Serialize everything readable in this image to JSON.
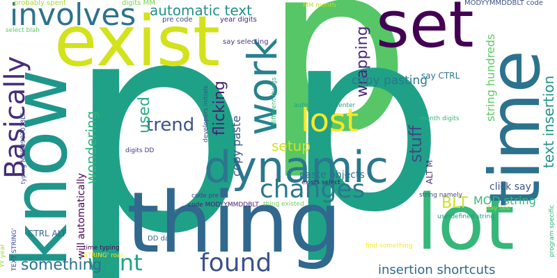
{
  "words": [
    {
      "text": "p",
      "color": "#1fa187"
    },
    {
      "text": "p",
      "color": "#56c667"
    },
    {
      "text": "p",
      "color": "#1fa187"
    },
    {
      "text": "thing",
      "color": "#31688e"
    },
    {
      "text": "know",
      "color": "#1f968b"
    },
    {
      "text": "exist",
      "color": "#d2e21b"
    },
    {
      "text": "lot",
      "color": "#35b779"
    },
    {
      "text": "time",
      "color": "#2c728e"
    },
    {
      "text": "set",
      "color": "#440154"
    },
    {
      "text": "dynamic",
      "color": "#2a788e"
    },
    {
      "text": "involves",
      "color": "#2c728e"
    },
    {
      "text": "Basically",
      "color": "#472d7b"
    },
    {
      "text": "work",
      "color": "#26828e"
    },
    {
      "text": "lost",
      "color": "#fde725"
    },
    {
      "text": "found",
      "color": "#3b528b"
    },
    {
      "text": "want",
      "color": "#20a386"
    },
    {
      "text": "changes",
      "color": "#2a788e"
    },
    {
      "text": "automatic text",
      "color": "#21918c"
    },
    {
      "text": "something",
      "color": "#2c728e"
    },
    {
      "text": "trend",
      "color": "#3b528b"
    },
    {
      "text": "used",
      "color": "#28ae80"
    },
    {
      "text": "flicking",
      "color": "#482173"
    },
    {
      "text": "stuff",
      "color": "#3e4989"
    },
    {
      "text": "setup",
      "color": "#d2e21b"
    },
    {
      "text": "BLT",
      "color": "#d2e21b"
    },
    {
      "text": "wrapping",
      "color": "#482878"
    },
    {
      "text": "text insertion",
      "color": "#21918c"
    },
    {
      "text": "insertion shortcuts",
      "color": "#31688e"
    },
    {
      "text": "copy pasting",
      "color": "#2a788e"
    },
    {
      "text": "wondering",
      "color": "#2db27d"
    },
    {
      "text": "copy paste",
      "color": "#3b528b"
    },
    {
      "text": "string hundreds",
      "color": "#5ec962"
    },
    {
      "text": "MOD string",
      "color": "#35b779"
    },
    {
      "text": "click say",
      "color": "#3b528b"
    },
    {
      "text": "paste objects",
      "color": "#2c728e"
    },
    {
      "text": "will automatically",
      "color": "#440154"
    },
    {
      "text": "say CTRL",
      "color": "#2c728e"
    },
    {
      "text": "ALT M",
      "color": "#472d7b"
    },
    {
      "text": "CTRL ALT",
      "color": "#31688e"
    },
    {
      "text": "probably spent",
      "color": "#a5db36"
    },
    {
      "text": "digits MM",
      "color": "#7ad151"
    },
    {
      "text": "MODYYMMDDBLT code",
      "color": "#3b528b"
    },
    {
      "text": "MM month",
      "color": "#bddf26"
    },
    {
      "text": "pre code",
      "color": "#3e4989"
    },
    {
      "text": "year digits",
      "color": "#482878"
    },
    {
      "text": "say selecting",
      "color": "#443983"
    },
    {
      "text": "select blah",
      "color": "#5ec962"
    },
    {
      "text": "developers initials",
      "color": "#3b528b"
    },
    {
      "text": "different things",
      "color": "#35b779"
    },
    {
      "text": "automatically enter",
      "color": "#1fa187"
    },
    {
      "text": "month digits",
      "color": "#35b779"
    },
    {
      "text": "exists select",
      "color": "#471164"
    },
    {
      "text": "code pre",
      "color": "#424086"
    },
    {
      "text": "code MODYYMMDDBLT",
      "color": "#481a6c"
    },
    {
      "text": "thing existed",
      "color": "#6ece58"
    },
    {
      "text": "DD day",
      "color": "#31688e"
    },
    {
      "text": "find something",
      "color": "#fde725"
    },
    {
      "text": "string namely",
      "color": "#3e4989"
    },
    {
      "text": "day see",
      "color": "#a5db36"
    },
    {
      "text": "userdefined string",
      "color": "#1f968b"
    },
    {
      "text": "program specific",
      "color": "#2db27d"
    },
    {
      "text": "digits DD",
      "color": "#46337e"
    },
    {
      "text": "time typing",
      "color": "#440154"
    },
    {
      "text": "STRING' roar",
      "color": "#fde725"
    },
    {
      "text": "roar etc",
      "color": "#26828e"
    },
    {
      "text": "TEXT STRING'",
      "color": "#3e4989"
    },
    {
      "text": "YY year",
      "color": "#a0da39"
    },
    {
      "text": "typing MOD0907018LT",
      "color": "#3b528b"
    }
  ]
}
